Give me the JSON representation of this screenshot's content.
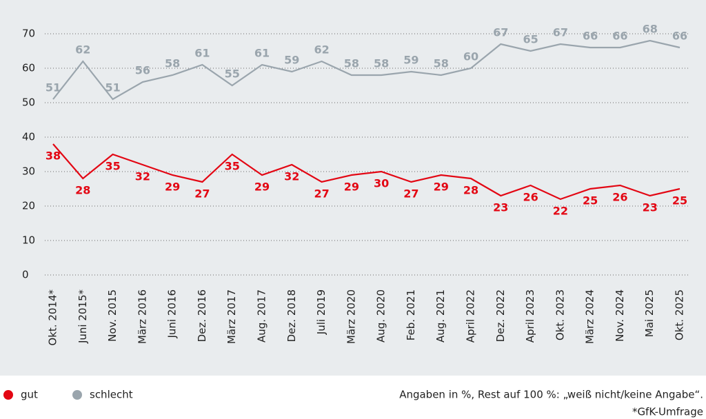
{
  "chart_data": {
    "type": "line",
    "categories": [
      "Okt. 2014*",
      "Juni 2015*",
      "Nov. 2015",
      "März 2016",
      "Juni 2016",
      "Dez. 2016",
      "März 2017",
      "Aug. 2017",
      "Dez. 2018",
      "Juli 2019",
      "März 2020",
      "Aug. 2020",
      "Feb. 2021",
      "Aug. 2021",
      "April 2022",
      "Dez. 2022",
      "April 2023",
      "Okt. 2023",
      "März 2024",
      "Nov. 2024",
      "Mai 2025",
      "Okt. 2025"
    ],
    "series": [
      {
        "name": "gut",
        "color": "#e30613",
        "values": [
          38,
          28,
          35,
          32,
          29,
          27,
          35,
          29,
          32,
          27,
          29,
          30,
          27,
          29,
          28,
          23,
          26,
          22,
          25,
          26,
          23,
          25
        ]
      },
      {
        "name": "schlecht",
        "color": "#9aa5ad",
        "values": [
          51,
          62,
          51,
          56,
          58,
          61,
          55,
          61,
          59,
          62,
          58,
          58,
          59,
          58,
          60,
          67,
          65,
          67,
          66,
          66,
          68,
          66
        ]
      }
    ],
    "ylim": [
      0,
      70
    ],
    "yticks": [
      0,
      10,
      20,
      30,
      40,
      50,
      60,
      70
    ],
    "grid": true,
    "notes": [
      "Angaben in %, Rest auf 100 %: „weiß nicht/keine Angabe“.",
      "*GfK-Umfrage"
    ]
  }
}
